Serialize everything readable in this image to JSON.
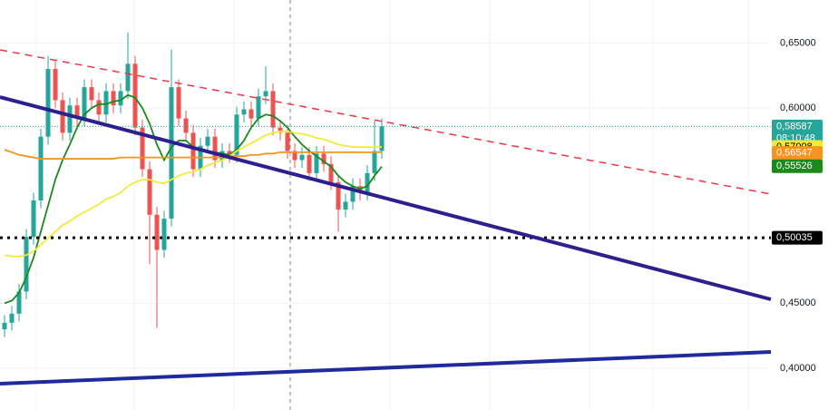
{
  "chart_data": {
    "type": "candlestick",
    "categories": [
      null,
      null,
      null,
      null,
      null,
      null,
      null,
      null,
      null,
      null,
      null,
      null,
      null,
      null,
      null,
      null,
      null,
      null,
      null,
      null,
      null,
      null,
      null,
      null,
      null,
      null,
      null,
      null,
      null,
      null,
      null,
      null,
      null,
      null,
      null,
      null,
      null,
      null,
      null,
      null,
      null,
      null,
      null,
      null,
      null,
      null,
      null,
      null,
      null,
      null,
      null,
      null,
      null
    ],
    "open": [
      0.43,
      0.435,
      0.442,
      0.459,
      0.501,
      0.529,
      0.578,
      0.63,
      0.606,
      0.581,
      0.602,
      0.592,
      0.616,
      0.606,
      0.595,
      0.613,
      0.602,
      0.613,
      0.634,
      0.585,
      0.553,
      0.518,
      0.491,
      0.515,
      0.616,
      0.592,
      0.581,
      0.553,
      0.571,
      0.578,
      0.56,
      0.567,
      0.564,
      0.595,
      0.599,
      0.592,
      0.609,
      0.613,
      0.585,
      0.581,
      0.567,
      0.56,
      0.564,
      0.55,
      0.565,
      0.557,
      0.543,
      0.522,
      0.528,
      0.54,
      0.535,
      0.55,
      0.567
    ],
    "high": [
      0.441,
      0.448,
      0.465,
      0.507,
      0.535,
      0.584,
      0.64,
      0.636,
      0.612,
      0.608,
      0.608,
      0.622,
      0.622,
      0.612,
      0.619,
      0.619,
      0.619,
      0.658,
      0.64,
      0.591,
      0.559,
      0.524,
      0.521,
      0.645,
      0.622,
      0.598,
      0.587,
      0.577,
      0.584,
      0.584,
      0.573,
      0.573,
      0.601,
      0.605,
      0.605,
      0.615,
      0.632,
      0.619,
      0.591,
      0.587,
      0.573,
      0.57,
      0.57,
      0.571,
      0.571,
      0.563,
      0.549,
      0.534,
      0.546,
      0.546,
      0.556,
      0.59,
      0.592
    ],
    "low": [
      0.424,
      0.429,
      0.436,
      0.453,
      0.495,
      0.523,
      0.572,
      0.6,
      0.575,
      0.575,
      0.586,
      0.586,
      0.6,
      0.589,
      0.589,
      0.596,
      0.596,
      0.607,
      0.579,
      0.547,
      0.48,
      0.431,
      0.485,
      0.509,
      0.586,
      0.575,
      0.547,
      0.547,
      0.565,
      0.554,
      0.554,
      0.558,
      0.558,
      0.589,
      0.586,
      0.586,
      0.603,
      0.579,
      0.575,
      0.561,
      0.554,
      0.554,
      0.544,
      0.544,
      0.551,
      0.537,
      0.505,
      0.516,
      0.522,
      0.529,
      0.529,
      0.544,
      0.561
    ],
    "close": [
      0.435,
      0.442,
      0.459,
      0.501,
      0.529,
      0.578,
      0.63,
      0.606,
      0.581,
      0.602,
      0.592,
      0.616,
      0.606,
      0.595,
      0.613,
      0.602,
      0.613,
      0.634,
      0.585,
      0.553,
      0.518,
      0.491,
      0.515,
      0.616,
      0.592,
      0.581,
      0.553,
      0.571,
      0.578,
      0.56,
      0.567,
      0.564,
      0.595,
      0.599,
      0.592,
      0.609,
      0.613,
      0.585,
      0.581,
      0.567,
      0.56,
      0.564,
      0.55,
      0.565,
      0.557,
      0.543,
      0.522,
      0.528,
      0.54,
      0.535,
      0.55,
      0.567,
      0.58587
    ],
    "up_color": "#26a69a",
    "down_color": "#ef5350",
    "series": [
      {
        "color": "#1b8a1b",
        "values": [
          0.45,
          0.452,
          0.458,
          0.47,
          0.485,
          0.505,
          0.525,
          0.545,
          0.56,
          0.572,
          0.585,
          0.595,
          0.6,
          0.603,
          0.603,
          0.605,
          0.606,
          0.61,
          0.608,
          0.6,
          0.588,
          0.572,
          0.56,
          0.57,
          0.575,
          0.575,
          0.57,
          0.568,
          0.567,
          0.566,
          0.565,
          0.564,
          0.568,
          0.575,
          0.585,
          0.592,
          0.595,
          0.594,
          0.59,
          0.585,
          0.578,
          0.572,
          0.567,
          0.563,
          0.559,
          0.555,
          0.548,
          0.543,
          0.54,
          0.538,
          0.54,
          0.548,
          0.555
        ]
      },
      {
        "color": "#f2ea3a",
        "values": [
          0.487,
          0.486,
          0.486,
          0.487,
          0.49,
          0.495,
          0.5,
          0.505,
          0.51,
          0.513,
          0.517,
          0.52,
          0.523,
          0.526,
          0.53,
          0.532,
          0.535,
          0.54,
          0.543,
          0.545,
          0.545,
          0.543,
          0.542,
          0.545,
          0.548,
          0.55,
          0.551,
          0.553,
          0.556,
          0.558,
          0.56,
          0.563,
          0.567,
          0.57,
          0.573,
          0.576,
          0.579,
          0.581,
          0.582,
          0.582,
          0.581,
          0.58,
          0.579,
          0.577,
          0.576,
          0.574,
          0.572,
          0.571,
          0.57,
          0.57,
          0.57,
          0.57,
          0.57
        ]
      },
      {
        "color": "#f7931e",
        "values": [
          0.568,
          0.566,
          0.564,
          0.563,
          0.562,
          0.561,
          0.561,
          0.561,
          0.561,
          0.561,
          0.561,
          0.561,
          0.561,
          0.561,
          0.561,
          0.561,
          0.562,
          0.562,
          0.562,
          0.562,
          0.562,
          0.562,
          0.562,
          0.562,
          0.562,
          0.562,
          0.562,
          0.562,
          0.562,
          0.562,
          0.562,
          0.563,
          0.563,
          0.563,
          0.564,
          0.564,
          0.565,
          0.565,
          0.566,
          0.566,
          0.566,
          0.566,
          0.566,
          0.566,
          0.566,
          0.566,
          0.566,
          0.566,
          0.566,
          0.566,
          0.566,
          0.566,
          0.566
        ]
      }
    ],
    "ylim": [
      0.368,
      0.683
    ],
    "yticks": [
      {
        "value": 0.4,
        "label": "0,40000"
      },
      {
        "value": 0.45,
        "label": "0,45000"
      },
      {
        "value": 0.6,
        "label": "0,60000"
      },
      {
        "value": 0.65,
        "label": "0,65000"
      }
    ],
    "markers": [
      {
        "value": 0.58587,
        "label": "0,58587",
        "color": "#26a69a",
        "sub": "08:10:48",
        "line": "dotted"
      },
      {
        "value": 0.57008,
        "label": "0,57008",
        "color": "#f2ea3a"
      },
      {
        "value": 0.56547,
        "label": "0,56547",
        "color": "#f7931e"
      },
      {
        "value": 0.55526,
        "label": "0,55526",
        "color": "#1b8a1b"
      },
      {
        "value": 0.50035,
        "label": "0,50035",
        "color": "#000000",
        "line": "dotted"
      }
    ],
    "grid": true
  }
}
